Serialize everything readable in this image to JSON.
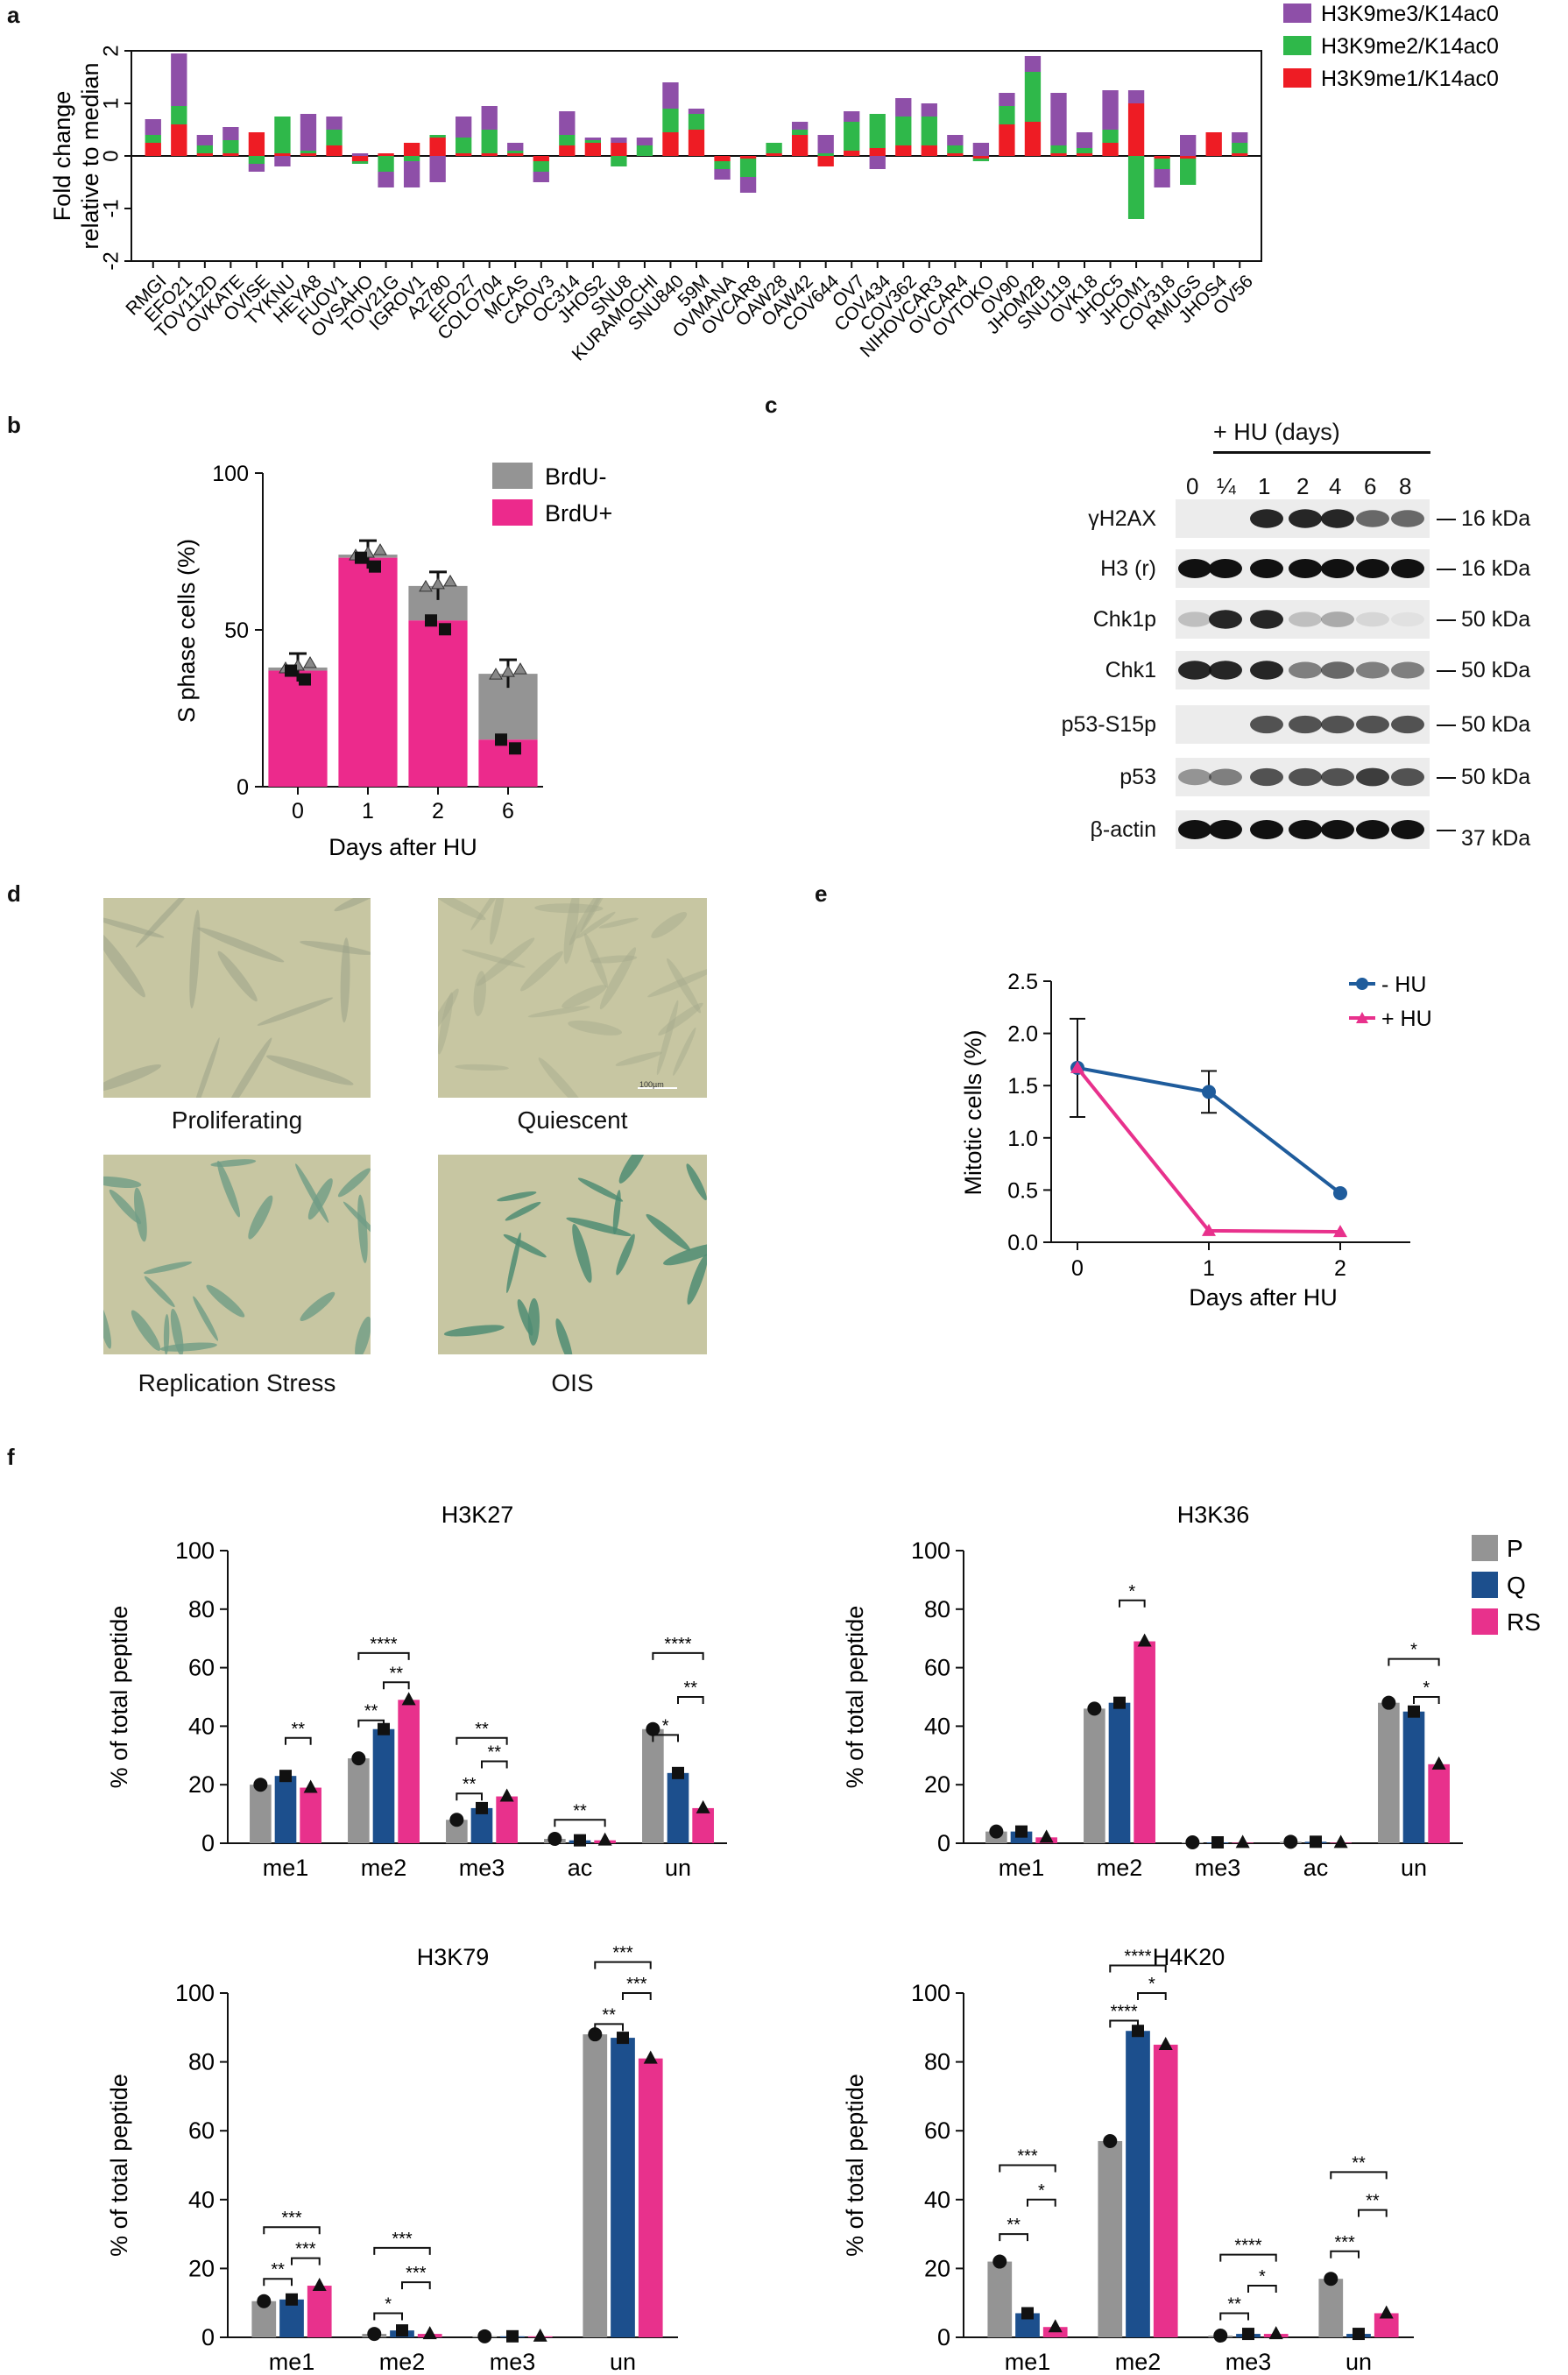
{
  "colors": {
    "purple": "#8e4fa8",
    "green": "#2fb84a",
    "red": "#ee1c24",
    "gray": "#949494",
    "pink": "#ec2a8c",
    "navy": "#1c4f8d",
    "magenta": "#e8318c",
    "blue": "#1f5c9c"
  },
  "panel_labels": {
    "a": "a",
    "b": "b",
    "c": "c",
    "d": "d",
    "e": "e",
    "f": "f"
  },
  "panel_a": {
    "ylabel1": "Fold change",
    "ylabel2": "relative to median",
    "legend": [
      "H3K9me3/K14ac0",
      "H3K9me2/K14ac0",
      "H3K9me1/K14ac0"
    ]
  },
  "panel_c": {
    "header": "+ HU (days)",
    "lanes": [
      "0",
      "¼",
      "1",
      "2",
      "4",
      "6",
      "8"
    ],
    "rows": [
      {
        "label": "γH2AX",
        "kda": "16 kDa"
      },
      {
        "label": "H3 (r)",
        "kda": "16 kDa"
      },
      {
        "label": "Chk1p",
        "kda": "50 kDa"
      },
      {
        "label": "Chk1",
        "kda": "50 kDa"
      },
      {
        "label": "p53-S15p",
        "kda": "50 kDa"
      },
      {
        "label": "p53",
        "kda": "50 kDa"
      },
      {
        "label": "β-actin",
        "kda": "37 kDa"
      }
    ]
  },
  "panel_d": {
    "captions": [
      "Proliferating",
      "Quiescent",
      "Replication Stress",
      "OIS"
    ],
    "scalebar": "100µm"
  },
  "chart_data": [
    {
      "id": "a",
      "type": "bar",
      "stacked": true,
      "categories": [
        "RMGI",
        "EFO21",
        "TOV112D",
        "OVKATE",
        "OVISE",
        "TYKNU",
        "HEYA8",
        "FUOV1",
        "OVSAHO",
        "TOV21G",
        "IGROV1",
        "A2780",
        "EFO27",
        "COLO704",
        "MCAS",
        "CAOV3",
        "OC314",
        "JHOS2",
        "SNU8",
        "KURAMOCHI",
        "SNU840",
        "59M",
        "OVMANA",
        "OVCAR8",
        "OAW28",
        "OAW42",
        "COV644",
        "OV7",
        "COV434",
        "COV362",
        "NIHOVCAR3",
        "OVCAR4",
        "OVTOKO",
        "OV90",
        "JHOM2B",
        "SNU119",
        "OVK18",
        "JHOC5",
        "JHOM1",
        "COV318",
        "RMUGS",
        "JHOS4",
        "OV56"
      ],
      "series": [
        {
          "name": "H3K9me1/K14ac0",
          "values": [
            0.25,
            0.6,
            0.05,
            0.05,
            0.45,
            0.05,
            0.05,
            0.2,
            -0.1,
            0.05,
            0.25,
            0.35,
            0.05,
            0.05,
            0.05,
            -0.1,
            0.2,
            0.25,
            0.25,
            0.0,
            0.45,
            0.5,
            -0.1,
            -0.05,
            0.05,
            0.4,
            -0.2,
            0.1,
            0.15,
            0.2,
            0.2,
            0.05,
            -0.05,
            0.6,
            0.65,
            0.05,
            0.05,
            0.25,
            1.0,
            -0.05,
            -0.05,
            0.45,
            0.05
          ]
        },
        {
          "name": "H3K9me2/K14ac0",
          "values": [
            0.15,
            0.35,
            0.15,
            0.25,
            -0.15,
            0.7,
            0.05,
            0.3,
            -0.05,
            -0.3,
            -0.1,
            0.05,
            0.3,
            0.45,
            0.05,
            -0.2,
            0.2,
            0.05,
            -0.2,
            0.2,
            0.45,
            0.3,
            -0.15,
            -0.35,
            0.2,
            0.1,
            0.05,
            0.55,
            0.65,
            0.55,
            0.55,
            0.15,
            -0.05,
            0.35,
            0.95,
            0.15,
            0.1,
            0.25,
            -1.2,
            -0.2,
            -0.5,
            0.0,
            0.2
          ]
        },
        {
          "name": "H3K9me3/K14ac0",
          "values": [
            0.3,
            1.0,
            0.2,
            0.25,
            -0.15,
            -0.2,
            0.7,
            0.25,
            0.05,
            -0.3,
            -0.5,
            -0.5,
            0.4,
            0.45,
            0.15,
            -0.2,
            0.45,
            0.05,
            0.1,
            0.15,
            0.5,
            0.1,
            -0.2,
            -0.3,
            0.0,
            0.15,
            0.35,
            0.2,
            -0.25,
            0.35,
            0.25,
            0.2,
            0.25,
            0.25,
            0.3,
            1.0,
            0.3,
            0.75,
            0.25,
            -0.35,
            0.4,
            0.0,
            0.2
          ]
        }
      ],
      "ylim": [
        -2,
        2
      ],
      "yticks": [
        -2,
        -1,
        0,
        1,
        2
      ]
    },
    {
      "id": "b",
      "type": "bar",
      "stacked": true,
      "title": "",
      "xlabel": "Days after HU",
      "ylabel": "S phase cells (%)",
      "categories": [
        "0",
        "1",
        "2",
        "6"
      ],
      "series": [
        {
          "name": "BrdU-",
          "values": [
            1,
            1,
            11,
            21
          ]
        },
        {
          "name": "BrdU+",
          "values": [
            37,
            73,
            53,
            15
          ]
        }
      ],
      "ylim": [
        0,
        100
      ],
      "yticks": [
        0,
        50,
        100
      ]
    },
    {
      "id": "e",
      "type": "line",
      "xlabel": "Days after HU",
      "ylabel": "Mitotic cells (%)",
      "x": [
        0,
        1,
        2
      ],
      "series": [
        {
          "name": "- HU",
          "values": [
            1.67,
            1.44,
            0.47
          ],
          "err": [
            0.47,
            0.2,
            0.0
          ]
        },
        {
          "name": "+ HU",
          "values": [
            1.67,
            0.11,
            0.1
          ],
          "err": [
            0,
            0,
            0
          ]
        }
      ],
      "ylim": [
        0,
        2.5
      ],
      "yticks": [
        "0.0",
        "0.5",
        "1.0",
        "1.5",
        "2.0",
        "2.5"
      ]
    },
    {
      "id": "f1",
      "type": "bar",
      "title": "H3K27",
      "ylabel": "% of total peptide",
      "categories": [
        "me1",
        "me2",
        "me3",
        "ac",
        "un"
      ],
      "series": [
        {
          "name": "P",
          "values": [
            20,
            29,
            8,
            1.5,
            39
          ]
        },
        {
          "name": "Q",
          "values": [
            23,
            39,
            12,
            1,
            24
          ]
        },
        {
          "name": "RS",
          "values": [
            19,
            49,
            16,
            1,
            12
          ]
        }
      ],
      "ylim": [
        0,
        100
      ],
      "yticks": [
        0,
        20,
        40,
        60,
        80,
        100
      ],
      "sig": [
        {
          "cat": 0,
          "from": 1,
          "to": 2,
          "label": "**",
          "y": 36
        },
        {
          "cat": 1,
          "from": 0,
          "to": 1,
          "label": "**",
          "y": 42
        },
        {
          "cat": 1,
          "from": 1,
          "to": 2,
          "label": "**",
          "y": 55
        },
        {
          "cat": 1,
          "from": 0,
          "to": 2,
          "label": "****",
          "y": 65
        },
        {
          "cat": 2,
          "from": 0,
          "to": 1,
          "label": "**",
          "y": 17
        },
        {
          "cat": 2,
          "from": 1,
          "to": 2,
          "label": "**",
          "y": 28
        },
        {
          "cat": 2,
          "from": 0,
          "to": 2,
          "label": "**",
          "y": 36
        },
        {
          "cat": 3,
          "from": 0,
          "to": 2,
          "label": "**",
          "y": 8
        },
        {
          "cat": 4,
          "from": 0,
          "to": 1,
          "label": "*",
          "y": 37
        },
        {
          "cat": 4,
          "from": 1,
          "to": 2,
          "label": "**",
          "y": 50
        },
        {
          "cat": 4,
          "from": 0,
          "to": 2,
          "label": "****",
          "y": 65
        }
      ]
    },
    {
      "id": "f2",
      "type": "bar",
      "title": "H3K36",
      "ylabel": "% of total peptide",
      "categories": [
        "me1",
        "me2",
        "me3",
        "ac",
        "un"
      ],
      "series": [
        {
          "name": "P",
          "values": [
            4,
            46,
            0.3,
            0.5,
            48
          ]
        },
        {
          "name": "Q",
          "values": [
            4,
            48,
            0.3,
            0.5,
            45
          ]
        },
        {
          "name": "RS",
          "values": [
            2,
            69,
            0.2,
            0.2,
            27
          ]
        }
      ],
      "ylim": [
        0,
        100
      ],
      "yticks": [
        0,
        20,
        40,
        60,
        80,
        100
      ],
      "legend": [
        "P",
        "Q",
        "RS"
      ],
      "sig": [
        {
          "cat": 1,
          "from": 1,
          "to": 2,
          "label": "*",
          "y": 83
        },
        {
          "cat": 4,
          "from": 1,
          "to": 2,
          "label": "*",
          "y": 50
        },
        {
          "cat": 4,
          "from": 0,
          "to": 2,
          "label": "*",
          "y": 63
        }
      ]
    },
    {
      "id": "f3",
      "type": "bar",
      "title": "H3K79",
      "ylabel": "% of total peptide",
      "categories": [
        "me1",
        "me2",
        "me3",
        "un"
      ],
      "series": [
        {
          "name": "P",
          "values": [
            10.5,
            1,
            0.3,
            88
          ]
        },
        {
          "name": "Q",
          "values": [
            11,
            2,
            0.3,
            87
          ]
        },
        {
          "name": "RS",
          "values": [
            15,
            1,
            0.3,
            81
          ]
        }
      ],
      "ylim": [
        0,
        100
      ],
      "yticks": [
        0,
        20,
        40,
        60,
        80,
        100
      ],
      "sig": [
        {
          "cat": 0,
          "from": 0,
          "to": 1,
          "label": "**",
          "y": 17
        },
        {
          "cat": 0,
          "from": 1,
          "to": 2,
          "label": "***",
          "y": 23
        },
        {
          "cat": 0,
          "from": 0,
          "to": 2,
          "label": "***",
          "y": 32
        },
        {
          "cat": 1,
          "from": 0,
          "to": 1,
          "label": "*",
          "y": 7
        },
        {
          "cat": 1,
          "from": 1,
          "to": 2,
          "label": "***",
          "y": 16
        },
        {
          "cat": 1,
          "from": 0,
          "to": 2,
          "label": "***",
          "y": 26
        },
        {
          "cat": 3,
          "from": 0,
          "to": 1,
          "label": "**",
          "y": 91
        },
        {
          "cat": 3,
          "from": 1,
          "to": 2,
          "label": "***",
          "y": 100
        },
        {
          "cat": 3,
          "from": 0,
          "to": 2,
          "label": "***",
          "y": 109
        }
      ]
    },
    {
      "id": "f4",
      "type": "bar",
      "title": "H4K20",
      "ylabel": "% of total peptide",
      "categories": [
        "me1",
        "me2",
        "me3",
        "un"
      ],
      "series": [
        {
          "name": "P",
          "values": [
            22,
            57,
            0.5,
            17
          ]
        },
        {
          "name": "Q",
          "values": [
            7,
            89,
            1,
            1
          ]
        },
        {
          "name": "RS",
          "values": [
            3,
            85,
            1,
            7
          ]
        }
      ],
      "ylim": [
        0,
        100
      ],
      "yticks": [
        0,
        20,
        40,
        60,
        80,
        100
      ],
      "sig": [
        {
          "cat": 0,
          "from": 0,
          "to": 1,
          "label": "**",
          "y": 30
        },
        {
          "cat": 0,
          "from": 1,
          "to": 2,
          "label": "*",
          "y": 40
        },
        {
          "cat": 0,
          "from": 0,
          "to": 2,
          "label": "***",
          "y": 50
        },
        {
          "cat": 1,
          "from": 0,
          "to": 1,
          "label": "****",
          "y": 92
        },
        {
          "cat": 1,
          "from": 1,
          "to": 2,
          "label": "*",
          "y": 100
        },
        {
          "cat": 1,
          "from": 0,
          "to": 2,
          "label": "****",
          "y": 108
        },
        {
          "cat": 2,
          "from": 0,
          "to": 1,
          "label": "**",
          "y": 7
        },
        {
          "cat": 2,
          "from": 1,
          "to": 2,
          "label": "*",
          "y": 15
        },
        {
          "cat": 2,
          "from": 0,
          "to": 2,
          "label": "****",
          "y": 24
        },
        {
          "cat": 3,
          "from": 0,
          "to": 1,
          "label": "***",
          "y": 25
        },
        {
          "cat": 3,
          "from": 1,
          "to": 2,
          "label": "**",
          "y": 37
        },
        {
          "cat": 3,
          "from": 0,
          "to": 2,
          "label": "**",
          "y": 48
        }
      ]
    }
  ]
}
